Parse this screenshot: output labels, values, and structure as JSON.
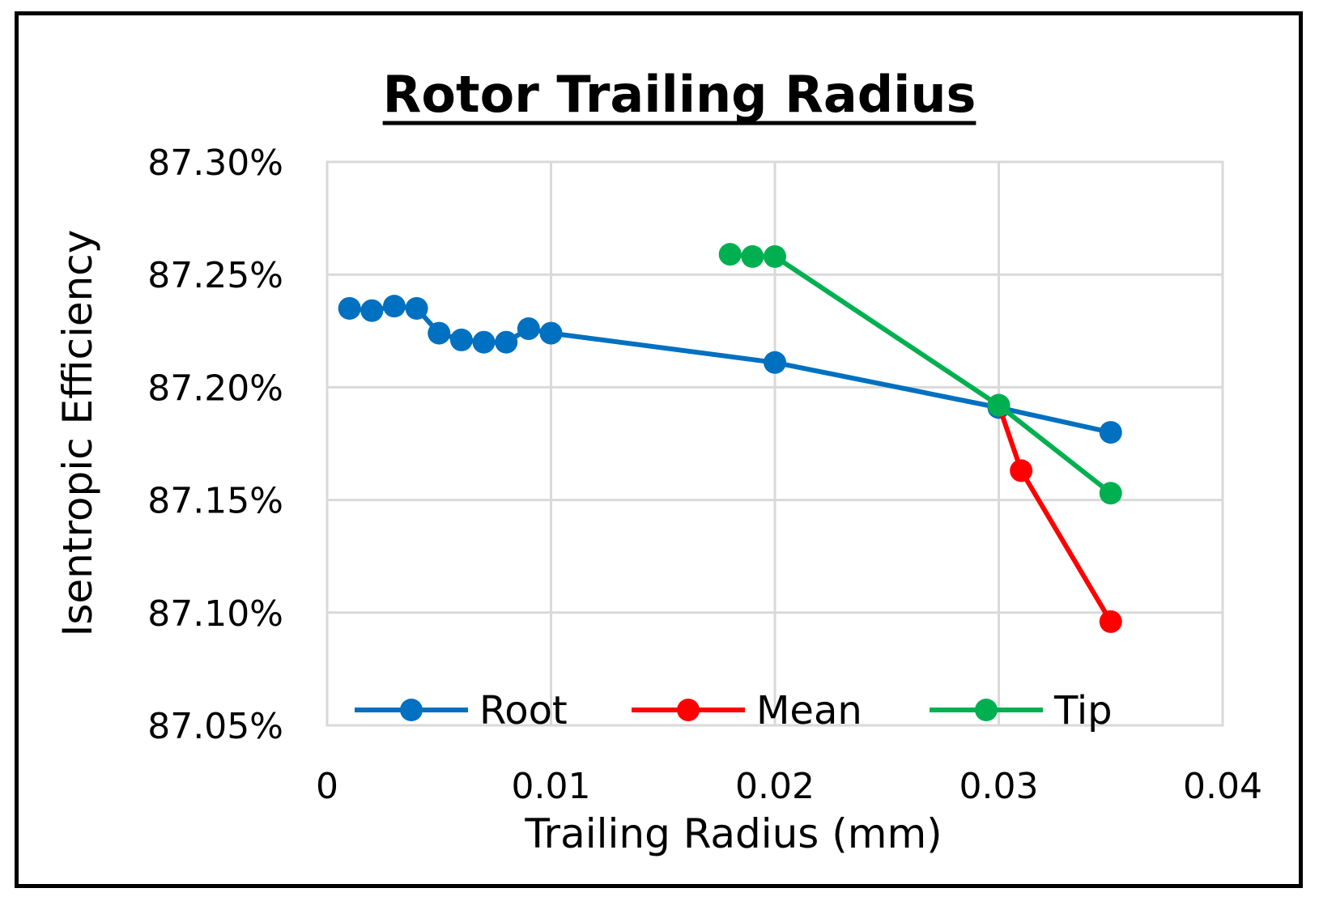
{
  "chart_data": {
    "type": "line",
    "title": "Rotor Trailing Radius",
    "xlabel": "Trailing Radius (mm)",
    "ylabel": "Isentropic Efficiency",
    "xlim": [
      0,
      0.04
    ],
    "ylim": [
      87.05,
      87.3
    ],
    "x_ticks": [
      0,
      0.01,
      0.02,
      0.03,
      0.04
    ],
    "x_tick_labels": [
      "0",
      "0.01",
      "0.02",
      "0.03",
      "0.04"
    ],
    "y_ticks": [
      87.05,
      87.1,
      87.15,
      87.2,
      87.25,
      87.3
    ],
    "y_tick_labels": [
      "87.05%",
      "87.10%",
      "87.15%",
      "87.20%",
      "87.25%",
      "87.30%"
    ],
    "grid": true,
    "legend_position": "bottom-inside",
    "series": [
      {
        "name": "Root",
        "color": "#0070c0",
        "x": [
          0.001,
          0.002,
          0.003,
          0.004,
          0.005,
          0.006,
          0.007,
          0.008,
          0.009,
          0.01,
          0.02,
          0.03,
          0.035
        ],
        "y": [
          87.235,
          87.234,
          87.236,
          87.235,
          87.224,
          87.221,
          87.22,
          87.22,
          87.226,
          87.224,
          87.211,
          87.191,
          87.18
        ]
      },
      {
        "name": "Mean",
        "color": "#ff0000",
        "x": [
          0.03,
          0.031,
          0.035
        ],
        "y": [
          87.192,
          87.163,
          87.096
        ]
      },
      {
        "name": "Tip",
        "color": "#00b050",
        "x": [
          0.018,
          0.019,
          0.02,
          0.03,
          0.035
        ],
        "y": [
          87.259,
          87.258,
          87.258,
          87.192,
          87.153
        ]
      }
    ]
  }
}
